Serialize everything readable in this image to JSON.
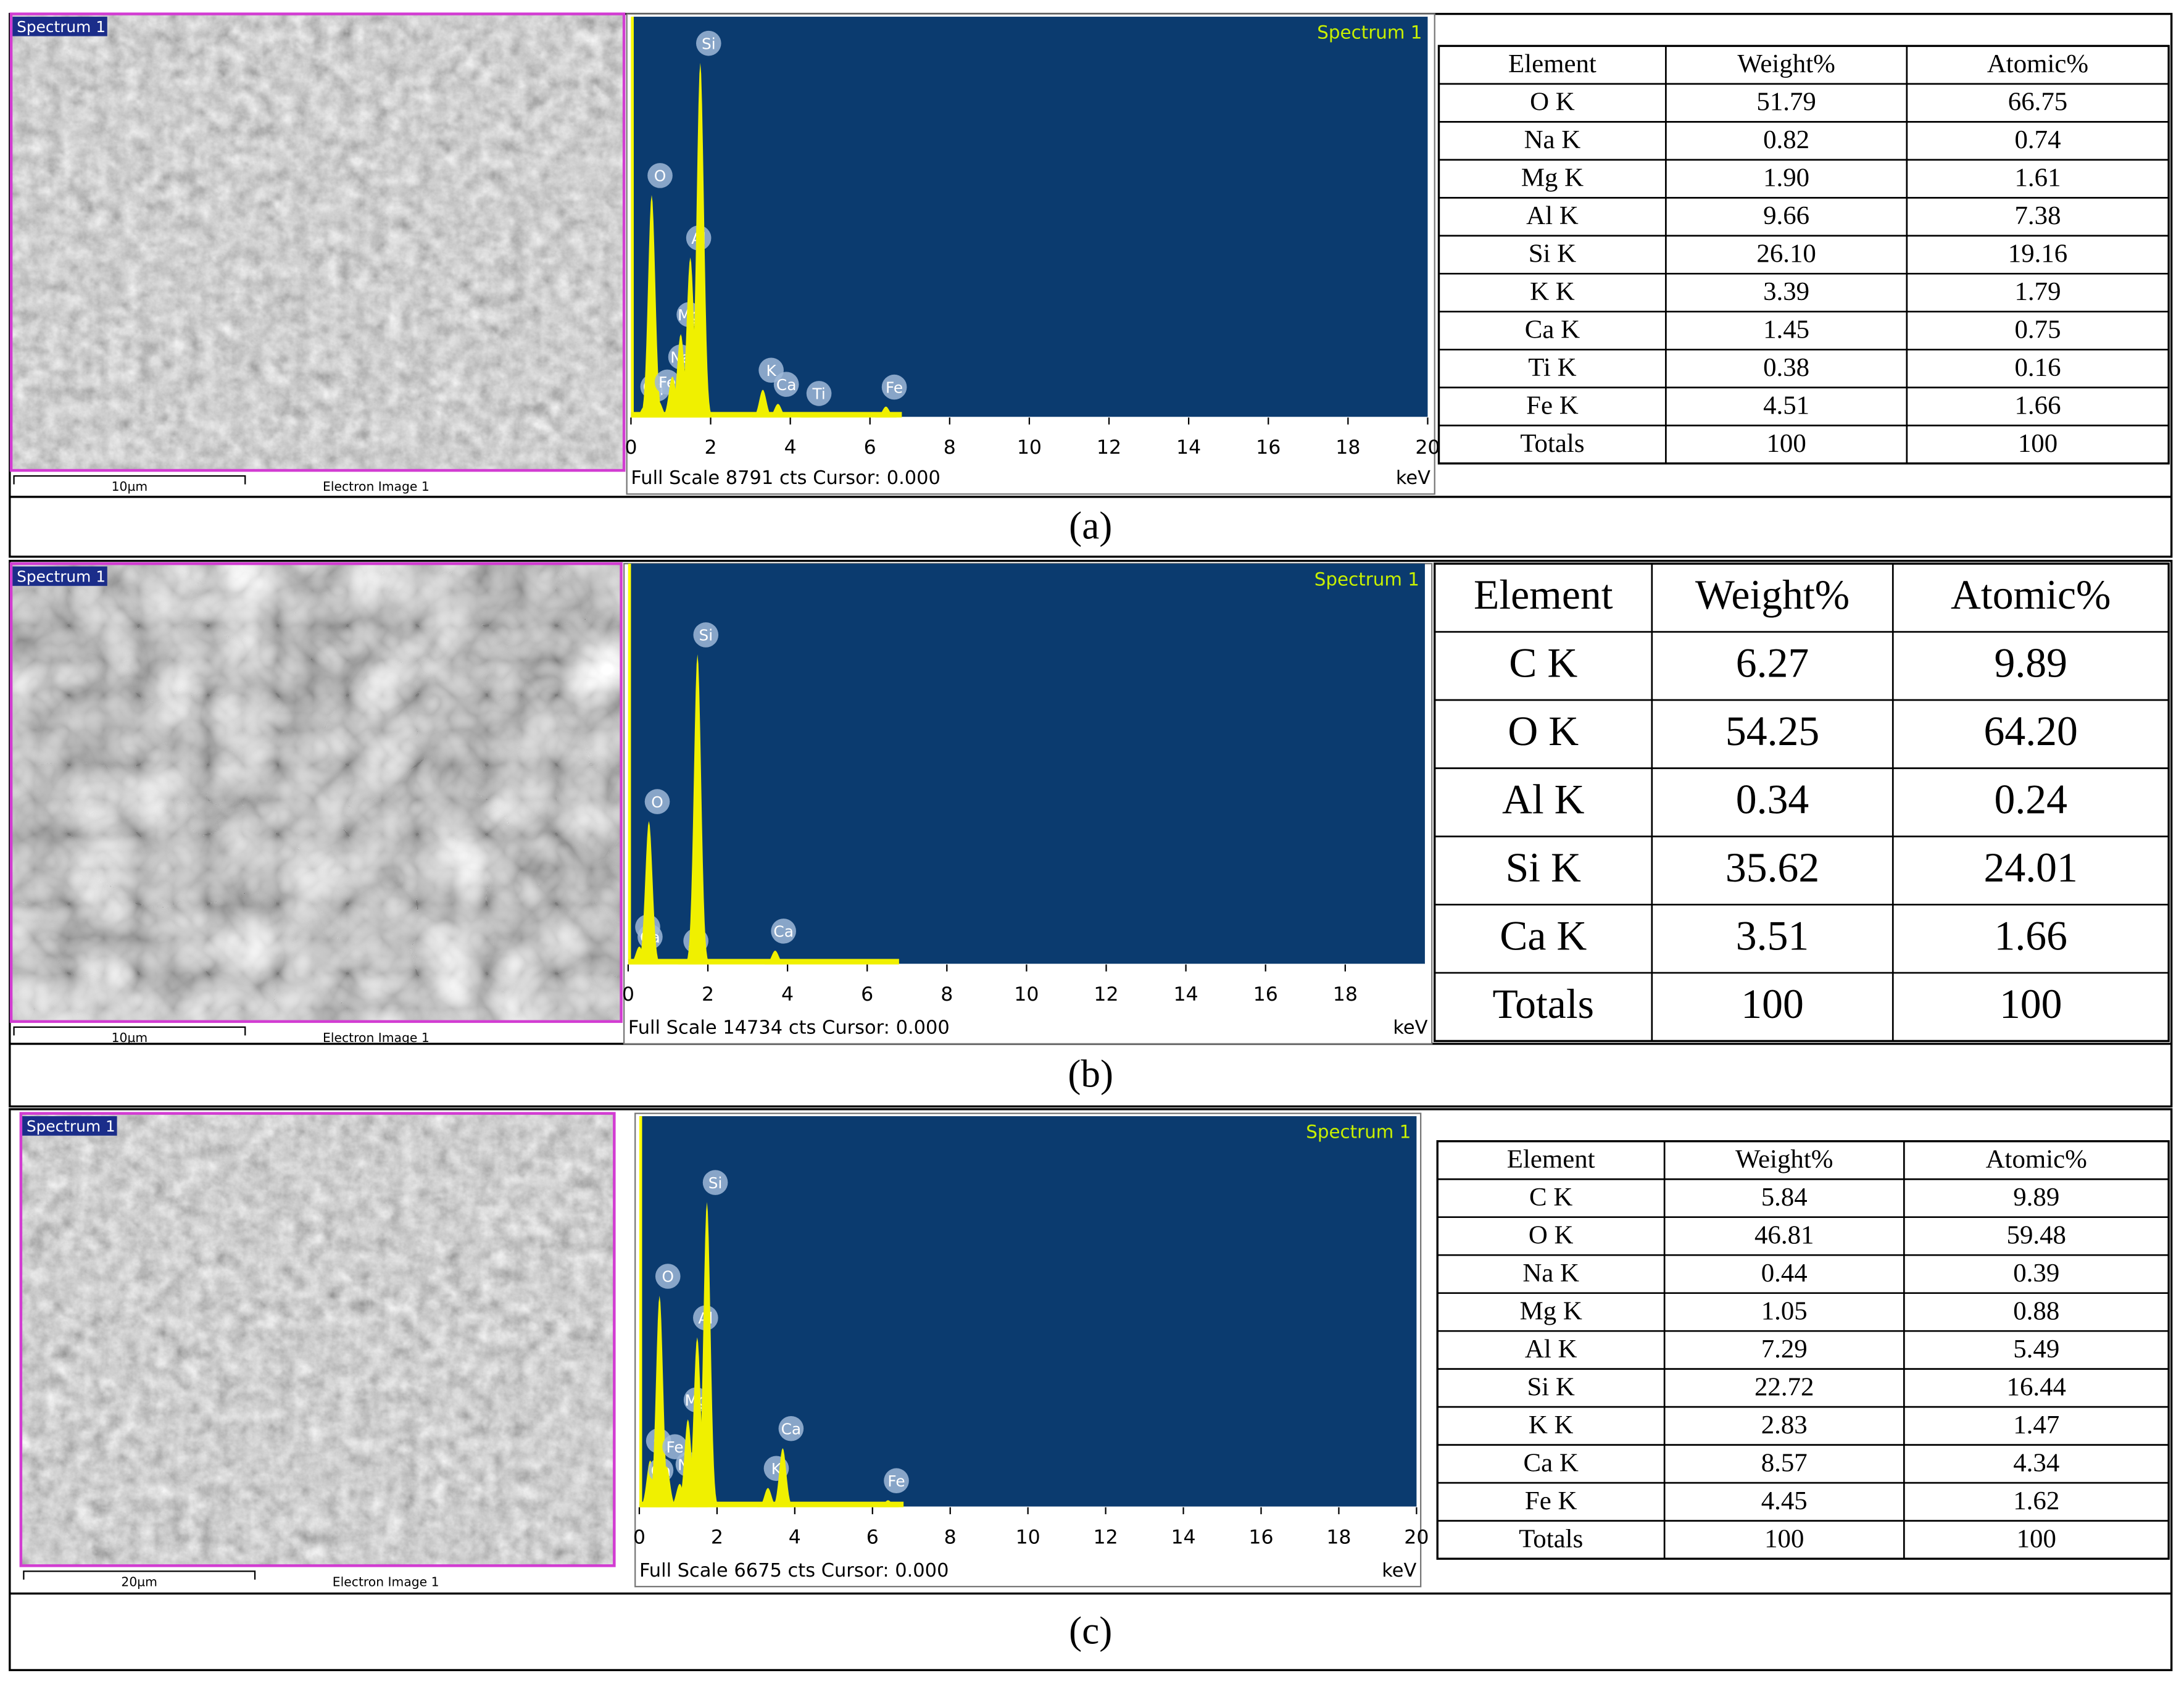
{
  "panels": [
    {
      "caption": "(a)",
      "image": {
        "tag": "Spectrum 1",
        "scale": "10µm",
        "name": "Electron Image 1"
      },
      "spectrum": {
        "type": "spectrum",
        "title": "Spectrum 1",
        "footer": "Full Scale 8791 cts Cursor: 0.000",
        "unit": "keV",
        "xlim": [
          0,
          20
        ],
        "ylim": [
          0,
          8791
        ],
        "xticks": [
          0,
          2,
          4,
          6,
          8,
          10,
          12,
          14,
          16,
          18,
          20
        ],
        "peaks": [
          {
            "label": "Ca",
            "kev": 0.34,
            "counts": 250
          },
          {
            "label": "Ti",
            "kev": 0.45,
            "counts": 200
          },
          {
            "label": "O",
            "kev": 0.52,
            "counts": 4880
          },
          {
            "label": "Fe",
            "kev": 0.7,
            "counts": 350
          },
          {
            "label": "Na",
            "kev": 1.04,
            "counts": 900
          },
          {
            "label": "Mg",
            "kev": 1.25,
            "counts": 1830
          },
          {
            "label": "Al",
            "kev": 1.49,
            "counts": 3510
          },
          {
            "label": "Si",
            "kev": 1.74,
            "counts": 7780
          },
          {
            "label": "K",
            "kev": 3.31,
            "counts": 610
          },
          {
            "label": "Ca",
            "kev": 3.69,
            "counts": 300
          },
          {
            "label": "Ti",
            "kev": 4.51,
            "counts": 100
          },
          {
            "label": "Fe",
            "kev": 6.4,
            "counts": 240
          }
        ]
      },
      "table": {
        "header": [
          "Element",
          "Weight%",
          "Atomic%"
        ],
        "rows": [
          [
            "O K",
            "51.79",
            "66.75"
          ],
          [
            "Na K",
            "0.82",
            "0.74"
          ],
          [
            "Mg K",
            "1.90",
            "1.61"
          ],
          [
            "Al K",
            "9.66",
            "7.38"
          ],
          [
            "Si K",
            "26.10",
            "19.16"
          ],
          [
            "K K",
            "3.39",
            "1.79"
          ],
          [
            "Ca K",
            "1.45",
            "0.75"
          ],
          [
            "Ti K",
            "0.38",
            "0.16"
          ],
          [
            "Fe K",
            "4.51",
            "1.66"
          ],
          [
            "Totals",
            "100",
            "100"
          ]
        ]
      }
    },
    {
      "caption": "(b)",
      "image": {
        "tag": "Spectrum 1",
        "scale": "10µm",
        "name": "Electron Image 1"
      },
      "spectrum": {
        "type": "spectrum",
        "title": "Spectrum 1",
        "footer": "Full Scale 14734 cts Cursor: 0.000",
        "unit": "keV",
        "xlim": [
          0,
          20
        ],
        "ylim": [
          0,
          14734
        ],
        "xticks": [
          0,
          2,
          4,
          6,
          8,
          10,
          12,
          14,
          16,
          18
        ],
        "peaks": [
          {
            "label": "C",
            "kev": 0.28,
            "counts": 660
          },
          {
            "label": "Ca",
            "kev": 0.34,
            "counts": 300
          },
          {
            "label": "O",
            "kev": 0.52,
            "counts": 5270
          },
          {
            "label": "Al",
            "kev": 1.49,
            "counts": 150
          },
          {
            "label": "Si",
            "kev": 1.74,
            "counts": 11400
          },
          {
            "label": "Ca",
            "kev": 3.69,
            "counts": 510
          }
        ]
      },
      "table": {
        "header": [
          "Element",
          "Weight%",
          "Atomic%"
        ],
        "rows": [
          [
            "C K",
            "6.27",
            "9.89"
          ],
          [
            "O K",
            "54.25",
            "64.20"
          ],
          [
            "Al K",
            "0.34",
            "0.24"
          ],
          [
            "Si K",
            "35.62",
            "24.01"
          ],
          [
            "Ca K",
            "3.51",
            "1.66"
          ],
          [
            "Totals",
            "100",
            "100"
          ]
        ]
      }
    },
    {
      "caption": "(c)",
      "image": {
        "tag": "Spectrum 1",
        "scale": "20µm",
        "name": "Electron Image 1"
      },
      "spectrum": {
        "type": "spectrum",
        "title": "Spectrum 1",
        "footer": "Full Scale 6675 cts Cursor: 0.000",
        "unit": "keV",
        "xlim": [
          0,
          20
        ],
        "ylim": [
          0,
          6675
        ],
        "xticks": [
          0,
          2,
          4,
          6,
          8,
          10,
          12,
          14,
          16,
          18,
          20
        ],
        "peaks": [
          {
            "label": "C",
            "kev": 0.28,
            "counts": 800
          },
          {
            "label": "Ca",
            "kev": 0.34,
            "counts": 300
          },
          {
            "label": "O",
            "kev": 0.52,
            "counts": 3610
          },
          {
            "label": "Fe",
            "kev": 0.7,
            "counts": 700
          },
          {
            "label": "Na",
            "kev": 1.04,
            "counts": 400
          },
          {
            "label": "Mg",
            "kev": 1.25,
            "counts": 1500
          },
          {
            "label": "Al",
            "kev": 1.49,
            "counts": 2900
          },
          {
            "label": "Si",
            "kev": 1.74,
            "counts": 5210
          },
          {
            "label": "K",
            "kev": 3.31,
            "counts": 330
          },
          {
            "label": "Ca",
            "kev": 3.69,
            "counts": 1010
          },
          {
            "label": "Fe",
            "kev": 6.4,
            "counts": 120
          }
        ]
      },
      "table": {
        "header": [
          "Element",
          "Weight%",
          "Atomic%"
        ],
        "rows": [
          [
            "C K",
            "5.84",
            "9.89"
          ],
          [
            "O K",
            "46.81",
            "59.48"
          ],
          [
            "Na K",
            "0.44",
            "0.39"
          ],
          [
            "Mg K",
            "1.05",
            "0.88"
          ],
          [
            "Al K",
            "7.29",
            "5.49"
          ],
          [
            "Si K",
            "22.72",
            "16.44"
          ],
          [
            "K K",
            "2.83",
            "1.47"
          ],
          [
            "Ca K",
            "8.57",
            "4.34"
          ],
          [
            "Fe K",
            "4.45",
            "1.62"
          ],
          [
            "Totals",
            "100",
            "100"
          ]
        ]
      }
    }
  ]
}
